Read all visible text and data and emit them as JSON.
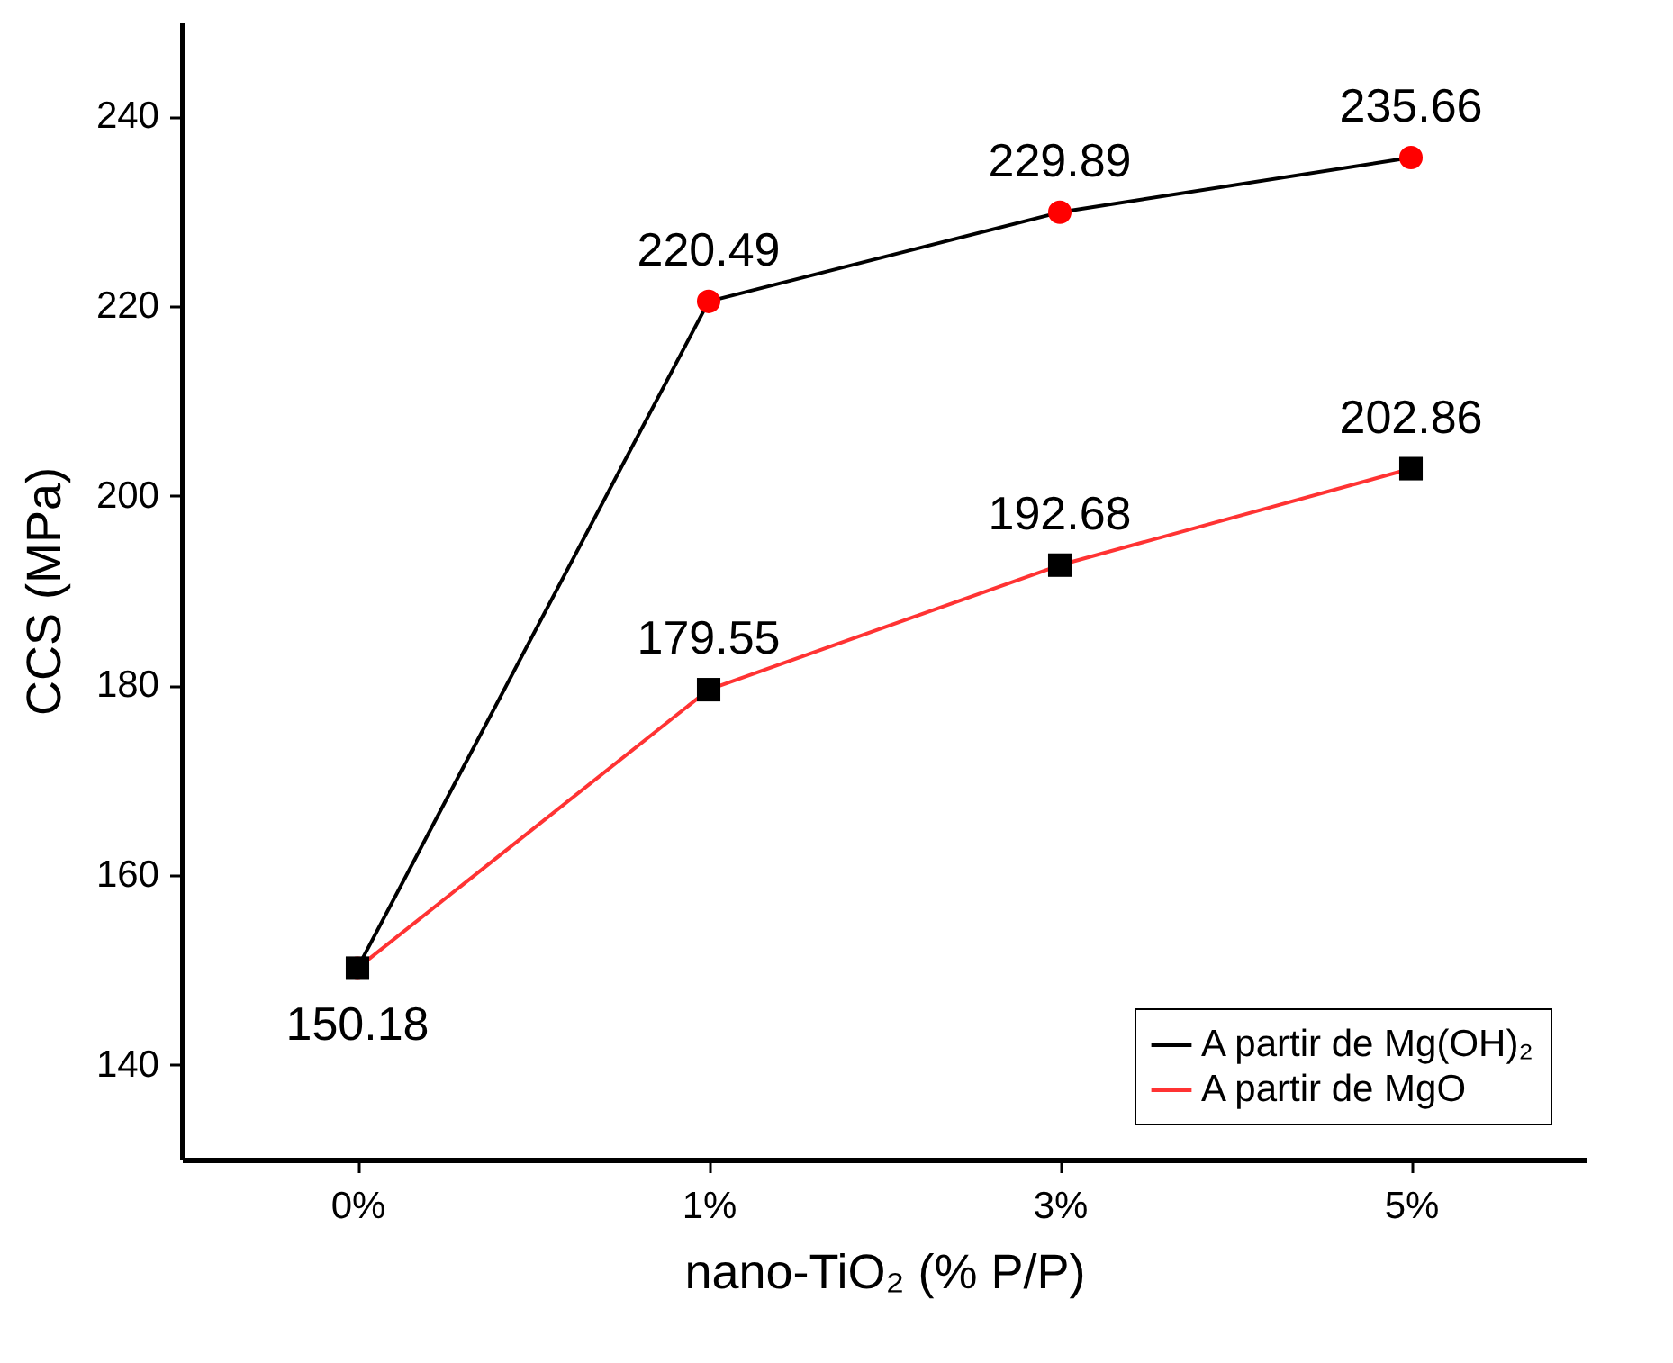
{
  "chart_data": {
    "type": "line",
    "xlabel": "nano-TiO₂ (% P/P)",
    "ylabel": "CCS (MPa)",
    "categories": [
      "0%",
      "1%",
      "3%",
      "5%"
    ],
    "ylim": [
      130,
      250
    ],
    "yticks": [
      140,
      160,
      180,
      200,
      220,
      240
    ],
    "grid": false,
    "legend": "bottom right",
    "series": [
      {
        "name": "A partir de Mg(OH)₂",
        "color": "#000000",
        "colors": [
          "#ff0000",
          "#ff0000",
          "#ff0000",
          "#ff0000"
        ],
        "marker": "circle",
        "values": [
          150.18,
          220.49,
          229.89,
          235.66
        ],
        "value_labels": [
          null,
          "220.49",
          "229.89",
          "235.66"
        ]
      },
      {
        "name": "A partir de MgO",
        "color": "#ff3333",
        "colors": [
          "#000000",
          "#000000",
          "#000000",
          "#000000"
        ],
        "marker": "square",
        "values": [
          150.18,
          179.55,
          192.68,
          202.86
        ],
        "value_labels": [
          "150.18",
          "179.55",
          "192.68",
          "202.86"
        ]
      }
    ]
  }
}
